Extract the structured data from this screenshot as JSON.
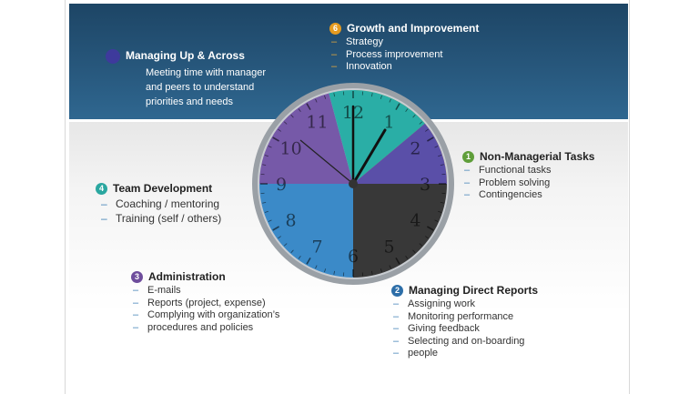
{
  "clock": {
    "numerals": [
      "12",
      "1",
      "2",
      "3",
      "4",
      "5",
      "6",
      "7",
      "8",
      "9",
      "10",
      "11"
    ]
  },
  "segments": [
    {
      "id": "growth",
      "color": "#f3ae37"
    },
    {
      "id": "non-managerial",
      "color": "#383838"
    },
    {
      "id": "direct-reports",
      "color": "#3b8ac8"
    },
    {
      "id": "administration",
      "color": "#7659a8"
    },
    {
      "id": "team-development",
      "color": "#2aaea6"
    },
    {
      "id": "managing-up",
      "color": "#5a4fa8"
    }
  ],
  "sections": {
    "growth": {
      "number": "6",
      "badge_color": "#e59b20",
      "title": "Growth and Improvement",
      "items": [
        "Strategy",
        "Process improvement",
        "Innovation"
      ]
    },
    "managing_up": {
      "badge_color": "#3e3a9c",
      "title": "Managing Up & Across",
      "description": [
        "Meeting time with manager",
        "and peers to understand",
        "priorities and needs"
      ]
    },
    "non_managerial": {
      "number": "1",
      "badge_color": "#5f9e3a",
      "title": "Non-Managerial Tasks",
      "items": [
        "Functional tasks",
        "Problem solving",
        "Contingencies"
      ]
    },
    "team_development": {
      "number": "4",
      "badge_color": "#2aa7a0",
      "title": "Team Development",
      "items": [
        "Coaching / mentoring",
        "Training (self / others)"
      ]
    },
    "administration": {
      "number": "3",
      "badge_color": "#6e4d9c",
      "title": "Administration",
      "items": [
        "E-mails",
        "Reports (project, expense)",
        "Complying with organization’s",
        "procedures and policies"
      ]
    },
    "direct_reports": {
      "number": "2",
      "badge_color": "#2d6ea8",
      "title": "Managing Direct Reports",
      "items": [
        "Assigning work",
        "Monitoring performance",
        "Giving feedback",
        "Selecting and on-boarding",
        "people"
      ]
    }
  }
}
